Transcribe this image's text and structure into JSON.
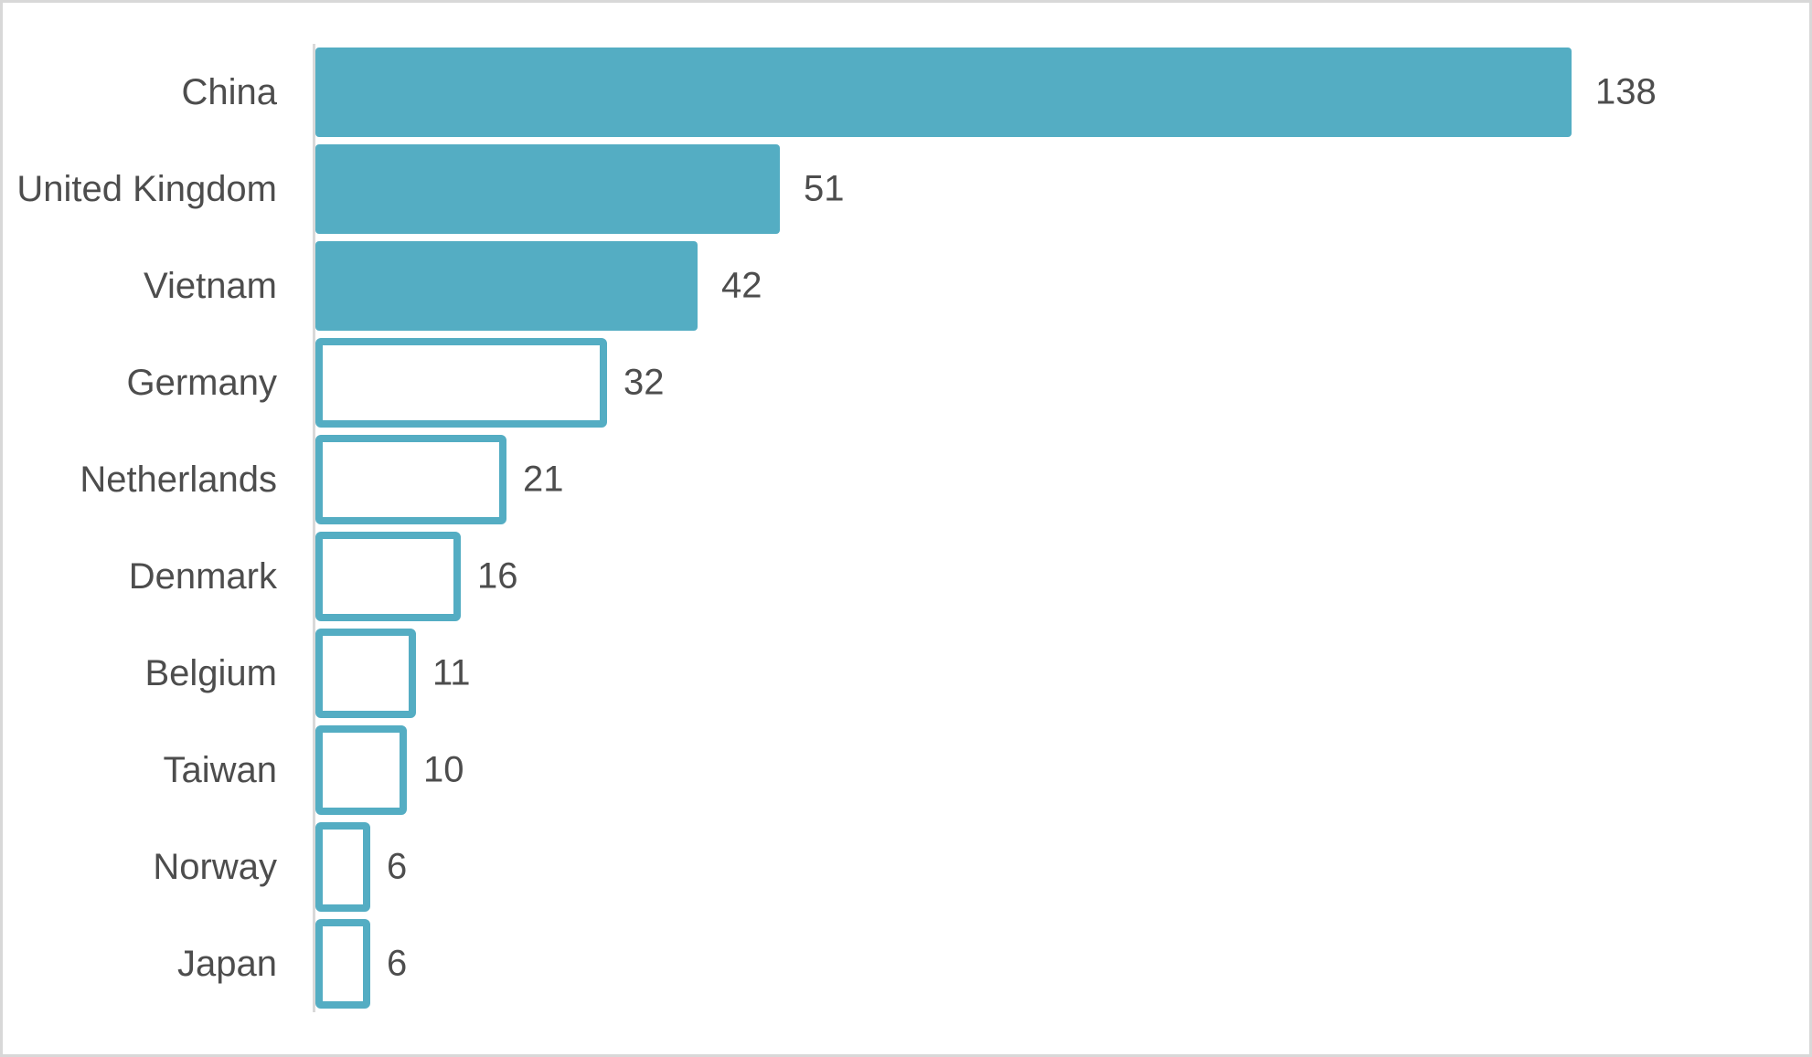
{
  "chart_data": {
    "type": "bar",
    "orientation": "horizontal",
    "title": "",
    "xlabel": "",
    "ylabel": "",
    "legend": "none",
    "grid": false,
    "data_labels": true,
    "xlim": [
      0,
      150
    ],
    "categories": [
      "China",
      "United Kingdom",
      "Vietnam",
      "Germany",
      "Netherlands",
      "Denmark",
      "Belgium",
      "Taiwan",
      "Norway",
      "Japan"
    ],
    "values": [
      138,
      51,
      42,
      32,
      21,
      16,
      11,
      10,
      6,
      6
    ],
    "value_labels": [
      "138",
      "51",
      "42",
      "32",
      "21",
      "16",
      "11",
      "10",
      "6",
      "6"
    ],
    "bar_styles": [
      "solid",
      "solid",
      "solid",
      "outline",
      "outline",
      "outline",
      "outline",
      "outline",
      "outline",
      "outline"
    ],
    "colors": {
      "bar": "#54adc3",
      "text": "#4d4d4d",
      "axis_line": "#d9d9d9",
      "canvas_border": "#d8d8d8",
      "background": "#ffffff"
    }
  }
}
